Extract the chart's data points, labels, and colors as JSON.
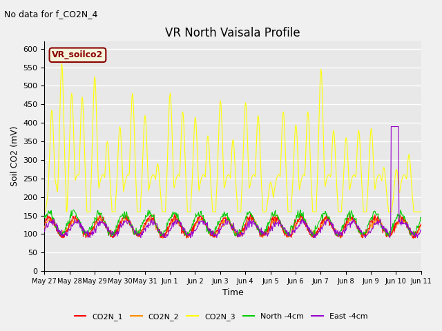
{
  "title": "VR North Vaisala Profile",
  "subtitle": "No data for f_CO2N_4",
  "xlabel": "Time",
  "ylabel": "Soil CO2 (mV)",
  "ylim": [
    0,
    620
  ],
  "yticks": [
    0,
    50,
    100,
    150,
    200,
    250,
    300,
    350,
    400,
    450,
    500,
    550,
    600
  ],
  "xtick_labels": [
    "May 27",
    "May 28",
    "May 29",
    "May 30",
    "May 31",
    "Jun 1",
    "Jun 2",
    "Jun 3",
    "Jun 4",
    "Jun 5",
    "Jun 6",
    "Jun 7",
    "Jun 8",
    "Jun 9",
    "Jun 10",
    "Jun 11"
  ],
  "legend_entries": [
    "CO2N_1",
    "CO2N_2",
    "CO2N_3",
    "North -4cm",
    "East -4cm"
  ],
  "legend_colors": [
    "#ff0000",
    "#ff8c00",
    "#ffff00",
    "#00cc00",
    "#9900cc"
  ],
  "annotation_text": "VR_soilco2",
  "grid_color": "#ffffff"
}
